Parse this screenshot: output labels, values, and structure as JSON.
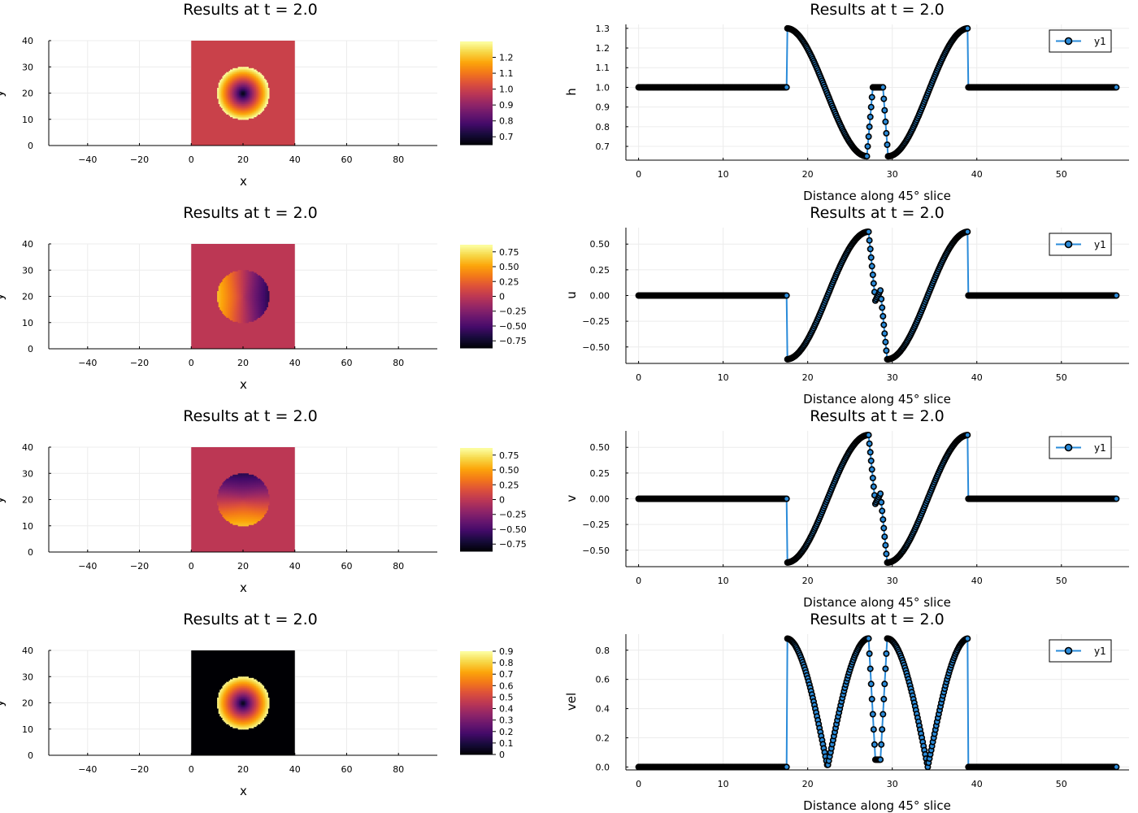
{
  "chart_data": [
    {
      "type": "heatmap",
      "title": "Results at t = 2.0",
      "xlabel": "x",
      "ylabel": "y",
      "xlim": [
        -55,
        95
      ],
      "ylim": [
        0,
        40
      ],
      "xticks": [
        "−40",
        "−20",
        "0",
        "20",
        "40",
        "60",
        "80"
      ],
      "yticks": [
        "0",
        "10",
        "20",
        "30",
        "40"
      ],
      "domain": {
        "x": [
          0,
          40
        ],
        "y": [
          0,
          40
        ]
      },
      "center": [
        20,
        20
      ],
      "radius": 10,
      "colorbar": {
        "min": 0.65,
        "max": 1.3,
        "ticks": [
          "0.7",
          "0.8",
          "0.9",
          "1.0",
          "1.1",
          "1.2"
        ]
      },
      "colormap": "inferno",
      "field": "h",
      "background_value": 1.0,
      "ring": {
        "outer_value": 1.3,
        "inner_value": 0.65
      }
    },
    {
      "type": "line",
      "title": "Results at t = 2.0",
      "xlabel": "Distance along 45° slice",
      "ylabel": "h",
      "xlim": [
        -1.5,
        58
      ],
      "ylim": [
        0.63,
        1.32
      ],
      "xticks": [
        "0",
        "10",
        "20",
        "30",
        "40",
        "50"
      ],
      "yticks": [
        "0.7",
        "0.8",
        "0.9",
        "1.0",
        "1.1",
        "1.2",
        "1.3"
      ],
      "legend": {
        "label": "y1",
        "position": "top-right"
      },
      "features": {
        "s1": 17.5,
        "mid": 28.3,
        "s2": 39.0,
        "peak": 1.3,
        "trough": 0.65,
        "base": 1.0
      }
    },
    {
      "type": "heatmap",
      "title": "Results at t = 2.0",
      "xlabel": "x",
      "ylabel": "y",
      "xlim": [
        -55,
        95
      ],
      "ylim": [
        0,
        40
      ],
      "xticks": [
        "−40",
        "−20",
        "0",
        "20",
        "40",
        "60",
        "80"
      ],
      "yticks": [
        "0",
        "10",
        "20",
        "30",
        "40"
      ],
      "domain": {
        "x": [
          0,
          40
        ],
        "y": [
          0,
          40
        ]
      },
      "center": [
        20,
        20
      ],
      "radius": 10,
      "colorbar": {
        "min": -0.87,
        "max": 0.87,
        "ticks": [
          "0.75",
          "0.50",
          "0.25",
          "0",
          "−0.25",
          "−0.50",
          "−0.75"
        ]
      },
      "colormap": "inferno",
      "field": "u",
      "background_value": 0.0,
      "ring": {
        "amplitude": 0.62
      }
    },
    {
      "type": "line",
      "title": "Results at t = 2.0",
      "xlabel": "Distance along 45° slice",
      "ylabel": "u",
      "xlim": [
        -1.5,
        58
      ],
      "ylim": [
        -0.66,
        0.66
      ],
      "xticks": [
        "0",
        "10",
        "20",
        "30",
        "40",
        "50"
      ],
      "yticks": [
        "0.50",
        "0.25",
        "0.00",
        "−0.25",
        "−0.50"
      ],
      "legend": {
        "label": "y1",
        "position": "top-right"
      },
      "features": {
        "s1": 17.5,
        "mid": 28.3,
        "s2": 39.0,
        "amplitude": 0.62
      }
    },
    {
      "type": "heatmap",
      "title": "Results at t = 2.0",
      "xlabel": "x",
      "ylabel": "y",
      "xlim": [
        -55,
        95
      ],
      "ylim": [
        0,
        40
      ],
      "xticks": [
        "−40",
        "−20",
        "0",
        "20",
        "40",
        "60",
        "80"
      ],
      "yticks": [
        "0",
        "10",
        "20",
        "30",
        "40"
      ],
      "domain": {
        "x": [
          0,
          40
        ],
        "y": [
          0,
          40
        ]
      },
      "center": [
        20,
        20
      ],
      "radius": 10,
      "colorbar": {
        "min": -0.87,
        "max": 0.87,
        "ticks": [
          "0.75",
          "0.50",
          "0.25",
          "0",
          "−0.25",
          "−0.50",
          "−0.75"
        ]
      },
      "colormap": "inferno",
      "field": "v",
      "background_value": 0.0,
      "ring": {
        "amplitude": 0.62
      }
    },
    {
      "type": "line",
      "title": "Results at t = 2.0",
      "xlabel": "Distance along 45° slice",
      "ylabel": "v",
      "xlim": [
        -1.5,
        58
      ],
      "ylim": [
        -0.66,
        0.66
      ],
      "xticks": [
        "0",
        "10",
        "20",
        "30",
        "40",
        "50"
      ],
      "yticks": [
        "0.50",
        "0.25",
        "0.00",
        "−0.25",
        "−0.50"
      ],
      "legend": {
        "label": "y1",
        "position": "top-right"
      },
      "features": {
        "s1": 17.5,
        "mid": 28.3,
        "s2": 39.0,
        "amplitude": 0.62
      }
    },
    {
      "type": "heatmap",
      "title": "Results at t = 2.0",
      "xlabel": "x",
      "ylabel": "y",
      "xlim": [
        -55,
        95
      ],
      "ylim": [
        0,
        40
      ],
      "xticks": [
        "−40",
        "−20",
        "0",
        "20",
        "40",
        "60",
        "80"
      ],
      "yticks": [
        "0",
        "10",
        "20",
        "30",
        "40"
      ],
      "domain": {
        "x": [
          0,
          40
        ],
        "y": [
          0,
          40
        ]
      },
      "center": [
        20,
        20
      ],
      "radius": 10,
      "colorbar": {
        "min": 0,
        "max": 0.9,
        "ticks": [
          "0.9",
          "0.8",
          "0.7",
          "0.6",
          "0.5",
          "0.4",
          "0.3",
          "0.2",
          "0.1",
          "0"
        ]
      },
      "colormap": "inferno",
      "field": "vel",
      "background_value": 0.0,
      "ring": {
        "amplitude": 0.88
      }
    },
    {
      "type": "line",
      "title": "Results at t = 2.0",
      "xlabel": "Distance along 45° slice",
      "ylabel": "vel",
      "xlim": [
        -1.5,
        58
      ],
      "ylim": [
        -0.02,
        0.91
      ],
      "xticks": [
        "0",
        "10",
        "20",
        "30",
        "40",
        "50"
      ],
      "yticks": [
        "0.8",
        "0.6",
        "0.4",
        "0.2",
        "0.0"
      ],
      "legend": {
        "label": "y1",
        "position": "top-right"
      },
      "features": {
        "s1": 17.5,
        "mid": 28.3,
        "s2": 39.0,
        "amplitude": 0.88
      }
    }
  ],
  "colors": {
    "line": "#2a8bd9",
    "marker": "#000000",
    "grid": "#ececec"
  }
}
